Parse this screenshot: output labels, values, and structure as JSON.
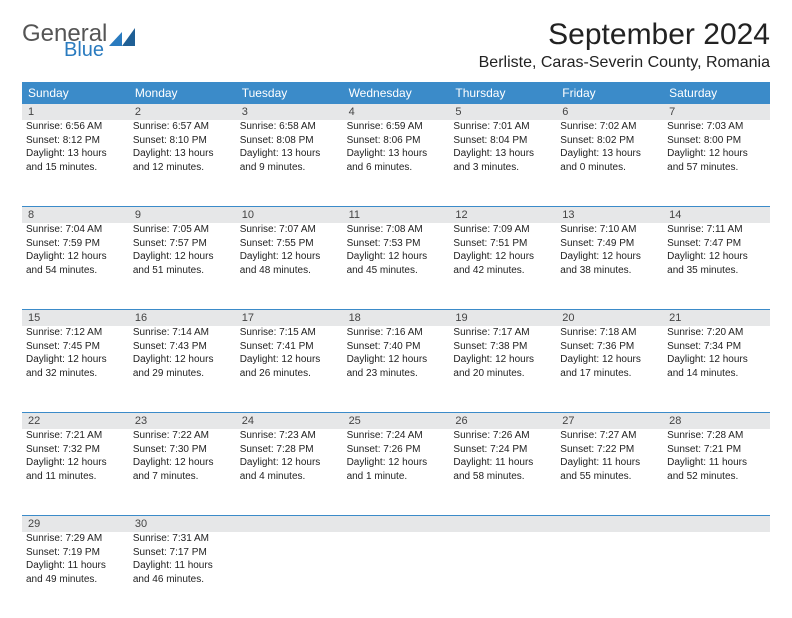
{
  "logo": {
    "general": "General",
    "blue": "Blue"
  },
  "title": "September 2024",
  "location": "Berliste, Caras-Severin County, Romania",
  "colors": {
    "header_bg": "#3b8bc9",
    "header_text": "#ffffff",
    "daynum_bg": "#e6e7e8",
    "rule": "#3b8bc9",
    "logo_general": "#555555",
    "logo_blue": "#2a7bbf"
  },
  "weekdays": [
    "Sunday",
    "Monday",
    "Tuesday",
    "Wednesday",
    "Thursday",
    "Friday",
    "Saturday"
  ],
  "weeks": [
    [
      {
        "d": "1",
        "sr": "Sunrise: 6:56 AM",
        "ss": "Sunset: 8:12 PM",
        "dl1": "Daylight: 13 hours",
        "dl2": "and 15 minutes."
      },
      {
        "d": "2",
        "sr": "Sunrise: 6:57 AM",
        "ss": "Sunset: 8:10 PM",
        "dl1": "Daylight: 13 hours",
        "dl2": "and 12 minutes."
      },
      {
        "d": "3",
        "sr": "Sunrise: 6:58 AM",
        "ss": "Sunset: 8:08 PM",
        "dl1": "Daylight: 13 hours",
        "dl2": "and 9 minutes."
      },
      {
        "d": "4",
        "sr": "Sunrise: 6:59 AM",
        "ss": "Sunset: 8:06 PM",
        "dl1": "Daylight: 13 hours",
        "dl2": "and 6 minutes."
      },
      {
        "d": "5",
        "sr": "Sunrise: 7:01 AM",
        "ss": "Sunset: 8:04 PM",
        "dl1": "Daylight: 13 hours",
        "dl2": "and 3 minutes."
      },
      {
        "d": "6",
        "sr": "Sunrise: 7:02 AM",
        "ss": "Sunset: 8:02 PM",
        "dl1": "Daylight: 13 hours",
        "dl2": "and 0 minutes."
      },
      {
        "d": "7",
        "sr": "Sunrise: 7:03 AM",
        "ss": "Sunset: 8:00 PM",
        "dl1": "Daylight: 12 hours",
        "dl2": "and 57 minutes."
      }
    ],
    [
      {
        "d": "8",
        "sr": "Sunrise: 7:04 AM",
        "ss": "Sunset: 7:59 PM",
        "dl1": "Daylight: 12 hours",
        "dl2": "and 54 minutes."
      },
      {
        "d": "9",
        "sr": "Sunrise: 7:05 AM",
        "ss": "Sunset: 7:57 PM",
        "dl1": "Daylight: 12 hours",
        "dl2": "and 51 minutes."
      },
      {
        "d": "10",
        "sr": "Sunrise: 7:07 AM",
        "ss": "Sunset: 7:55 PM",
        "dl1": "Daylight: 12 hours",
        "dl2": "and 48 minutes."
      },
      {
        "d": "11",
        "sr": "Sunrise: 7:08 AM",
        "ss": "Sunset: 7:53 PM",
        "dl1": "Daylight: 12 hours",
        "dl2": "and 45 minutes."
      },
      {
        "d": "12",
        "sr": "Sunrise: 7:09 AM",
        "ss": "Sunset: 7:51 PM",
        "dl1": "Daylight: 12 hours",
        "dl2": "and 42 minutes."
      },
      {
        "d": "13",
        "sr": "Sunrise: 7:10 AM",
        "ss": "Sunset: 7:49 PM",
        "dl1": "Daylight: 12 hours",
        "dl2": "and 38 minutes."
      },
      {
        "d": "14",
        "sr": "Sunrise: 7:11 AM",
        "ss": "Sunset: 7:47 PM",
        "dl1": "Daylight: 12 hours",
        "dl2": "and 35 minutes."
      }
    ],
    [
      {
        "d": "15",
        "sr": "Sunrise: 7:12 AM",
        "ss": "Sunset: 7:45 PM",
        "dl1": "Daylight: 12 hours",
        "dl2": "and 32 minutes."
      },
      {
        "d": "16",
        "sr": "Sunrise: 7:14 AM",
        "ss": "Sunset: 7:43 PM",
        "dl1": "Daylight: 12 hours",
        "dl2": "and 29 minutes."
      },
      {
        "d": "17",
        "sr": "Sunrise: 7:15 AM",
        "ss": "Sunset: 7:41 PM",
        "dl1": "Daylight: 12 hours",
        "dl2": "and 26 minutes."
      },
      {
        "d": "18",
        "sr": "Sunrise: 7:16 AM",
        "ss": "Sunset: 7:40 PM",
        "dl1": "Daylight: 12 hours",
        "dl2": "and 23 minutes."
      },
      {
        "d": "19",
        "sr": "Sunrise: 7:17 AM",
        "ss": "Sunset: 7:38 PM",
        "dl1": "Daylight: 12 hours",
        "dl2": "and 20 minutes."
      },
      {
        "d": "20",
        "sr": "Sunrise: 7:18 AM",
        "ss": "Sunset: 7:36 PM",
        "dl1": "Daylight: 12 hours",
        "dl2": "and 17 minutes."
      },
      {
        "d": "21",
        "sr": "Sunrise: 7:20 AM",
        "ss": "Sunset: 7:34 PM",
        "dl1": "Daylight: 12 hours",
        "dl2": "and 14 minutes."
      }
    ],
    [
      {
        "d": "22",
        "sr": "Sunrise: 7:21 AM",
        "ss": "Sunset: 7:32 PM",
        "dl1": "Daylight: 12 hours",
        "dl2": "and 11 minutes."
      },
      {
        "d": "23",
        "sr": "Sunrise: 7:22 AM",
        "ss": "Sunset: 7:30 PM",
        "dl1": "Daylight: 12 hours",
        "dl2": "and 7 minutes."
      },
      {
        "d": "24",
        "sr": "Sunrise: 7:23 AM",
        "ss": "Sunset: 7:28 PM",
        "dl1": "Daylight: 12 hours",
        "dl2": "and 4 minutes."
      },
      {
        "d": "25",
        "sr": "Sunrise: 7:24 AM",
        "ss": "Sunset: 7:26 PM",
        "dl1": "Daylight: 12 hours",
        "dl2": "and 1 minute."
      },
      {
        "d": "26",
        "sr": "Sunrise: 7:26 AM",
        "ss": "Sunset: 7:24 PM",
        "dl1": "Daylight: 11 hours",
        "dl2": "and 58 minutes."
      },
      {
        "d": "27",
        "sr": "Sunrise: 7:27 AM",
        "ss": "Sunset: 7:22 PM",
        "dl1": "Daylight: 11 hours",
        "dl2": "and 55 minutes."
      },
      {
        "d": "28",
        "sr": "Sunrise: 7:28 AM",
        "ss": "Sunset: 7:21 PM",
        "dl1": "Daylight: 11 hours",
        "dl2": "and 52 minutes."
      }
    ],
    [
      {
        "d": "29",
        "sr": "Sunrise: 7:29 AM",
        "ss": "Sunset: 7:19 PM",
        "dl1": "Daylight: 11 hours",
        "dl2": "and 49 minutes."
      },
      {
        "d": "30",
        "sr": "Sunrise: 7:31 AM",
        "ss": "Sunset: 7:17 PM",
        "dl1": "Daylight: 11 hours",
        "dl2": "and 46 minutes."
      },
      null,
      null,
      null,
      null,
      null
    ]
  ]
}
